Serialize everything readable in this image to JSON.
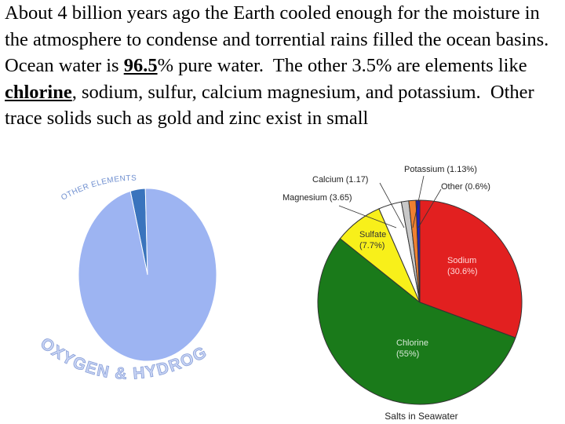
{
  "text": {
    "runs": [
      "About 4 billion years ago the Earth cooled enough for the moisture in the atmosphere to condense and torrential rains filled the ocean basins.  Ocean water is ",
      "96.5",
      "% pure water.  The other 3.5% are elements like ",
      "chlorine",
      ", sodium, sulfur, calcium magnesium, and potassium.  Other trace solids such as gold and zinc exist in small"
    ]
  },
  "chart_data": [
    {
      "type": "pie",
      "categories": [
        "OTHER ELEMENTS",
        "OXYGEN & HYDROGEN"
      ],
      "values": [
        3.5,
        96.5
      ],
      "colors": [
        "#3a74bd",
        "#9db4f2"
      ]
    },
    {
      "type": "pie",
      "title": "Salts in Seawater",
      "categories": [
        "Sodium",
        "Chlorine",
        "Sulfate",
        "Magnesium",
        "Calcium",
        "Potassium",
        "Other"
      ],
      "values": [
        30.6,
        55,
        7.7,
        3.65,
        1.17,
        1.13,
        0.6
      ],
      "value_labels": [
        "(30.6%)",
        "(55%)",
        "(7.7%)",
        "(3.65)",
        "(1.17)",
        "(1.13%)",
        "(0.6%)"
      ],
      "colors": [
        "#e22020",
        "#1a7a1a",
        "#f8f01a",
        "#ffffff",
        "#c8c8c8",
        "#f08030",
        "#2020c0"
      ]
    }
  ]
}
